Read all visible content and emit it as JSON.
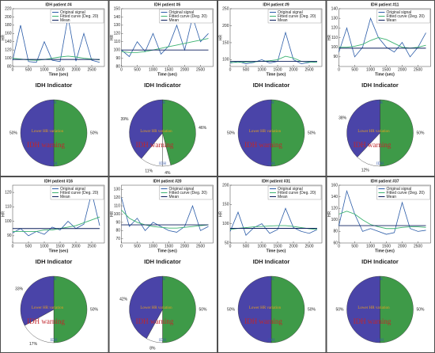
{
  "chart_data": [
    {
      "type": "line",
      "title": "IDH patient #4",
      "xlabel": "Time (sec)",
      "ylabel": "HR",
      "x": [
        0,
        250,
        500,
        750,
        1000,
        1250,
        1500,
        1750,
        2000,
        2250,
        2500,
        2750
      ],
      "xlim": [
        0,
        2900
      ],
      "xticks": [
        0,
        500,
        1000,
        1500,
        2000,
        2500
      ],
      "ylim": [
        80,
        220
      ],
      "yticks": [
        80,
        100,
        120,
        140,
        160,
        180,
        200,
        220
      ],
      "series": [
        {
          "name": "Original signal",
          "color": "#2b5ca8",
          "values": [
            95,
            180,
            92,
            90,
            140,
            95,
            92,
            200,
            93,
            160,
            95,
            90
          ]
        },
        {
          "name": "Fitted curve (Deg. 20)",
          "color": "#3cb371",
          "values": [
            100,
            98,
            96,
            95,
            97,
            100,
            103,
            105,
            103,
            100,
            98,
            96
          ]
        },
        {
          "name": "Mean",
          "color": "#0b1f5c",
          "values": [
            97,
            97,
            97,
            97,
            97,
            97,
            97,
            97,
            97,
            97,
            97,
            97
          ]
        }
      ]
    },
    {
      "type": "pie",
      "title": "IDH Indicator",
      "values": [
        50,
        50
      ],
      "value_labels": [
        "50%",
        "50%"
      ],
      "colors": [
        "#3e9a48",
        "#4a44a8"
      ],
      "annotations": [
        "HR",
        "Lower HR variation",
        "IDH warning",
        "IDH"
      ]
    },
    {
      "type": "line",
      "title": "IDH patient #6",
      "xlabel": "Time (sec)",
      "ylabel": "HR",
      "x": [
        0,
        250,
        500,
        750,
        1000,
        1250,
        1500,
        1750,
        2000,
        2250,
        2500,
        2750
      ],
      "xlim": [
        0,
        2900
      ],
      "xticks": [
        0,
        500,
        1000,
        1500,
        2000,
        2500
      ],
      "ylim": [
        80,
        150
      ],
      "yticks": [
        80,
        90,
        100,
        110,
        120,
        130,
        140,
        150
      ],
      "series": [
        {
          "name": "Original signal",
          "color": "#2b5ca8",
          "values": [
            100,
            92,
            110,
            98,
            120,
            95,
            105,
            130,
            100,
            140,
            110,
            120
          ]
        },
        {
          "name": "Fitted curve (Deg. 20)",
          "color": "#3cb371",
          "values": [
            98,
            97,
            97,
            98,
            100,
            102,
            104,
            106,
            108,
            110,
            112,
            114
          ]
        },
        {
          "name": "Mean",
          "color": "#0b1f5c",
          "values": [
            100,
            100,
            100,
            100,
            100,
            100,
            100,
            100,
            100,
            100,
            100,
            100
          ]
        }
      ]
    },
    {
      "type": "pie",
      "title": "IDH Indicator",
      "values": [
        46,
        4,
        11,
        39
      ],
      "value_labels": [
        "46%",
        "4%",
        "11%",
        "39%"
      ],
      "colors": [
        "#3e9a48",
        "#ffffff",
        "#ffffff",
        "#4a44a8"
      ],
      "annotations": [
        "HR",
        "Lower HR variation",
        "IDH warning",
        "IDH"
      ]
    },
    {
      "type": "line",
      "title": "IDH patient #9",
      "xlabel": "Time (sec)",
      "ylabel": "HR",
      "x": [
        0,
        250,
        500,
        750,
        1000,
        1250,
        1500,
        1750,
        2000,
        2250,
        2500,
        2750
      ],
      "xlim": [
        0,
        2900
      ],
      "xticks": [
        0,
        500,
        1000,
        1500,
        2000,
        2500
      ],
      "ylim": [
        80,
        250
      ],
      "yticks": [
        100,
        150,
        200,
        250
      ],
      "series": [
        {
          "name": "Original signal",
          "color": "#2b5ca8",
          "values": [
            90,
            95,
            88,
            92,
            100,
            90,
            95,
            180,
            100,
            88,
            92,
            95
          ]
        },
        {
          "name": "Fitted curve (Deg. 20)",
          "color": "#3cb371",
          "values": [
            92,
            92,
            93,
            94,
            95,
            97,
            100,
            110,
            105,
            95,
            93,
            92
          ]
        },
        {
          "name": "Mean",
          "color": "#0b1f5c",
          "values": [
            95,
            95,
            95,
            95,
            95,
            95,
            95,
            95,
            95,
            95,
            95,
            95
          ]
        }
      ]
    },
    {
      "type": "pie",
      "title": "IDH Indicator",
      "values": [
        50,
        50
      ],
      "value_labels": [
        "50%",
        "50%"
      ],
      "colors": [
        "#3e9a48",
        "#4a44a8"
      ],
      "annotations": [
        "HR",
        "Lower HR variation",
        "IDH warning",
        "IDH"
      ]
    },
    {
      "type": "line",
      "title": "IDH patient #11",
      "xlabel": "Time (sec)",
      "ylabel": "HR",
      "x": [
        0,
        250,
        500,
        750,
        1000,
        1250,
        1500,
        1750,
        2000,
        2250,
        2500,
        2750
      ],
      "xlim": [
        0,
        2900
      ],
      "xticks": [
        0,
        500,
        1000,
        1500,
        2000,
        2500
      ],
      "ylim": [
        80,
        140
      ],
      "yticks": [
        90,
        100,
        110,
        120,
        130,
        140
      ],
      "series": [
        {
          "name": "Original signal",
          "color": "#2b5ca8",
          "values": [
            95,
            120,
            90,
            100,
            130,
            110,
            100,
            95,
            105,
            90,
            100,
            115
          ]
        },
        {
          "name": "Fitted curve (Deg. 20)",
          "color": "#3cb371",
          "values": [
            100,
            100,
            101,
            103,
            107,
            110,
            108,
            104,
            100,
            99,
            100,
            102
          ]
        },
        {
          "name": "Mean",
          "color": "#0b1f5c",
          "values": [
            99,
            99,
            99,
            99,
            99,
            99,
            99,
            99,
            99,
            99,
            99,
            99
          ]
        }
      ]
    },
    {
      "type": "pie",
      "title": "IDH Indicator",
      "values": [
        50,
        12,
        38
      ],
      "value_labels": [
        "50%",
        "12%",
        "38%"
      ],
      "colors": [
        "#3e9a48",
        "#ffffff",
        "#4a44a8"
      ],
      "annotations": [
        "HR",
        "Lower HR variation",
        "IDH warning",
        "IDH"
      ]
    },
    {
      "type": "line",
      "title": "IDH patient #16",
      "xlabel": "Time (sec)",
      "ylabel": "HR",
      "x": [
        0,
        250,
        500,
        750,
        1000,
        1250,
        1500,
        1750,
        2000,
        2250,
        2500,
        2750
      ],
      "xlim": [
        0,
        2900
      ],
      "xticks": [
        0,
        500,
        1000,
        1500,
        2000,
        2500
      ],
      "ylim": [
        85,
        125
      ],
      "yticks": [
        90,
        100,
        110,
        120
      ],
      "series": [
        {
          "name": "Original signal",
          "color": "#2b5ca8",
          "values": [
            92,
            95,
            90,
            93,
            91,
            96,
            94,
            100,
            95,
            98,
            120,
            97
          ]
        },
        {
          "name": "Fitted curve (Deg. 20)",
          "color": "#3cb371",
          "values": [
            93,
            93,
            93,
            93,
            94,
            94,
            95,
            96,
            97,
            99,
            101,
            103
          ]
        },
        {
          "name": "Mean",
          "color": "#0b1f5c",
          "values": [
            95,
            95,
            95,
            95,
            95,
            95,
            95,
            95,
            95,
            95,
            95,
            95
          ]
        }
      ]
    },
    {
      "type": "pie",
      "title": "IDH Indicator",
      "values": [
        50,
        17,
        33
      ],
      "value_labels": [
        "50%",
        "17%",
        "33%"
      ],
      "colors": [
        "#3e9a48",
        "#ffffff",
        "#4a44a8"
      ],
      "annotations": [
        "HR",
        "Lower HR variation",
        "IDH warning",
        "IDH"
      ]
    },
    {
      "type": "line",
      "title": "IDH patient #20",
      "xlabel": "Time (sec)",
      "ylabel": "HR",
      "x": [
        0,
        250,
        500,
        750,
        1000,
        1250,
        1500,
        1750,
        2000,
        2250,
        2500,
        2750
      ],
      "xlim": [
        0,
        2900
      ],
      "xticks": [
        0,
        500,
        1000,
        1500,
        2000,
        2500
      ],
      "ylim": [
        65,
        135
      ],
      "yticks": [
        70,
        80,
        90,
        100,
        110,
        120,
        130
      ],
      "series": [
        {
          "name": "Original signal",
          "color": "#2b5ca8",
          "values": [
            120,
            85,
            95,
            80,
            90,
            85,
            80,
            78,
            85,
            110,
            80,
            85
          ]
        },
        {
          "name": "Fitted curve (Deg. 20)",
          "color": "#3cb371",
          "values": [
            105,
            95,
            90,
            87,
            85,
            84,
            83,
            83,
            84,
            85,
            86,
            87
          ]
        },
        {
          "name": "Mean",
          "color": "#0b1f5c",
          "values": [
            87,
            87,
            87,
            87,
            87,
            87,
            87,
            87,
            87,
            87,
            87,
            87
          ]
        }
      ]
    },
    {
      "type": "pie",
      "title": "IDH Indicator",
      "values": [
        50,
        8,
        42
      ],
      "value_labels": [
        "50%",
        "8%",
        "42%"
      ],
      "colors": [
        "#3e9a48",
        "#ffffff",
        "#4a44a8"
      ],
      "annotations": [
        "HR",
        "Lower HR variation",
        "IDH warning",
        "IDH"
      ]
    },
    {
      "type": "line",
      "title": "IDH patient #31",
      "xlabel": "Time (sec)",
      "ylabel": "HR",
      "x": [
        0,
        250,
        500,
        750,
        1000,
        1250,
        1500,
        1750,
        2000,
        2250,
        2500,
        2750
      ],
      "xlim": [
        0,
        2900
      ],
      "xticks": [
        0,
        500,
        1000,
        1500,
        2000,
        2500
      ],
      "ylim": [
        50,
        200
      ],
      "yticks": [
        50,
        100,
        150,
        200
      ],
      "series": [
        {
          "name": "Original signal",
          "color": "#2b5ca8",
          "values": [
            80,
            130,
            70,
            90,
            100,
            75,
            85,
            140,
            90,
            80,
            75,
            85
          ]
        },
        {
          "name": "Fitted curve (Deg. 20)",
          "color": "#3cb371",
          "values": [
            85,
            88,
            90,
            92,
            93,
            94,
            95,
            95,
            93,
            90,
            87,
            85
          ]
        },
        {
          "name": "Mean",
          "color": "#0b1f5c",
          "values": [
            88,
            88,
            88,
            88,
            88,
            88,
            88,
            88,
            88,
            88,
            88,
            88
          ]
        }
      ]
    },
    {
      "type": "pie",
      "title": "IDH Indicator",
      "values": [
        50,
        50
      ],
      "value_labels": [
        "50%",
        "50%"
      ],
      "colors": [
        "#3e9a48",
        "#4a44a8"
      ],
      "annotations": [
        "HR",
        "Lower HR variation",
        "IDH warning",
        "IDH"
      ]
    },
    {
      "type": "line",
      "title": "IDH patient #37",
      "xlabel": "Time (sec)",
      "ylabel": "HR",
      "x": [
        0,
        250,
        500,
        750,
        1000,
        1250,
        1500,
        1750,
        2000,
        2250,
        2500,
        2750
      ],
      "xlim": [
        0,
        2900
      ],
      "xticks": [
        0,
        500,
        1000,
        1500,
        2000,
        2500
      ],
      "ylim": [
        60,
        160
      ],
      "yticks": [
        60,
        80,
        100,
        120,
        140,
        160
      ],
      "series": [
        {
          "name": "Original signal",
          "color": "#2b5ca8",
          "values": [
            90,
            150,
            110,
            80,
            85,
            80,
            75,
            78,
            130,
            85,
            80,
            82
          ]
        },
        {
          "name": "Fitted curve (Deg. 20)",
          "color": "#3cb371",
          "values": [
            110,
            115,
            110,
            100,
            92,
            88,
            85,
            85,
            87,
            88,
            88,
            87
          ]
        },
        {
          "name": "Mean",
          "color": "#0b1f5c",
          "values": [
            90,
            90,
            90,
            90,
            90,
            90,
            90,
            90,
            90,
            90,
            90,
            90
          ]
        }
      ]
    },
    {
      "type": "pie",
      "title": "IDH Indicator",
      "values": [
        50,
        50
      ],
      "value_labels": [
        "50%",
        "50%"
      ],
      "colors": [
        "#3e9a48",
        "#4a44a8"
      ],
      "annotations": [
        "HR",
        "Lower HR variation",
        "IDH warning",
        "IDH"
      ]
    }
  ]
}
